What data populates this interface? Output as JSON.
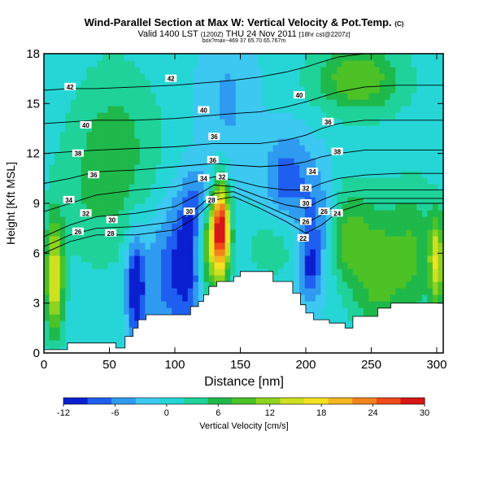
{
  "header": {
    "title": "Wind-Parallel Section at Max W: Vertical Velocity & Pot.Temp.",
    "title_mark": "(C)",
    "valid_line": "Valid 1400 LST",
    "valid_run": "(1200Z)",
    "valid_date": "THU 24 Nov 2011",
    "valid_tag": "[18hr cst@2207z]",
    "subline": "box?max~469 37 65.70 65.767m"
  },
  "colors": {
    "terrain": "#ffffff",
    "contour": "#000000",
    "label_bg": "#ffffff"
  },
  "chart_data": {
    "type": "heatmap",
    "xlabel": "Distance [nm]",
    "ylabel": "Height [Kft MSL]",
    "xlim": [
      0,
      305
    ],
    "ylim": [
      0,
      18
    ],
    "xticks": [
      0,
      50,
      100,
      150,
      200,
      250,
      300
    ],
    "yticks": [
      0,
      3,
      6,
      9,
      12,
      15,
      18
    ],
    "colorbar": {
      "label": "Vertical Velocity [cm/s]",
      "ticks": [
        -12,
        -6,
        0,
        6,
        12,
        18,
        24,
        30
      ],
      "range": [
        -12,
        30
      ],
      "colors": [
        "#0a1fd0",
        "#1f5ff0",
        "#2f9bf0",
        "#3cc8f0",
        "#26d6d6",
        "#1fd29a",
        "#1fb84a",
        "#4cc227",
        "#8fd21f",
        "#cfe021",
        "#f5e021",
        "#f5b61f",
        "#f2841c",
        "#ef4a1a",
        "#d81616"
      ]
    },
    "terrain": {
      "x": [
        0,
        18,
        18,
        55,
        55,
        62,
        62,
        68,
        68,
        72,
        72,
        78,
        78,
        84,
        84,
        112,
        112,
        118,
        118,
        122,
        122,
        126,
        126,
        132,
        132,
        145,
        145,
        150,
        150,
        175,
        175,
        190,
        190,
        196,
        196,
        200,
        200,
        206,
        206,
        218,
        218,
        230,
        230,
        236,
        236,
        255,
        255,
        265,
        265,
        305
      ],
      "top_kft": [
        0.2,
        0.2,
        0.6,
        0.6,
        0.3,
        0.3,
        1.0,
        1.0,
        1.5,
        1.5,
        2.0,
        2.0,
        2.3,
        2.3,
        2.3,
        2.3,
        2.8,
        2.8,
        3.1,
        3.1,
        3.5,
        3.5,
        4.0,
        4.0,
        4.3,
        4.3,
        4.6,
        4.6,
        4.9,
        4.9,
        4.3,
        4.3,
        3.6,
        3.6,
        2.9,
        2.9,
        2.4,
        2.4,
        2.0,
        2.0,
        1.8,
        1.8,
        1.5,
        1.5,
        2.2,
        2.2,
        2.7,
        2.7,
        3.0,
        3.0
      ]
    },
    "w_features": [
      {
        "x": 8,
        "z": 4.5,
        "sx": 5,
        "sz": 2.5,
        "w": 16
      },
      {
        "x": 70,
        "z": 4.0,
        "sx": 5,
        "sz": 2.2,
        "w": -13
      },
      {
        "x": 96,
        "z": 5.0,
        "sx": 14,
        "sz": 2.8,
        "w": -8
      },
      {
        "x": 112,
        "z": 5.5,
        "sx": 9,
        "sz": 3.0,
        "w": -7
      },
      {
        "x": 125,
        "z": 6.5,
        "sx": 6,
        "sz": 2.2,
        "w": 12
      },
      {
        "x": 135,
        "z": 7.5,
        "sx": 5,
        "sz": 2.0,
        "w": 30
      },
      {
        "x": 185,
        "z": 10.5,
        "sx": 12,
        "sz": 2.0,
        "w": -8
      },
      {
        "x": 208,
        "z": 8.0,
        "sx": 9,
        "sz": 2.5,
        "w": -6
      },
      {
        "x": 203,
        "z": 5.0,
        "sx": 6,
        "sz": 1.5,
        "w": -8
      },
      {
        "x": 232,
        "z": 7.0,
        "sx": 10,
        "sz": 2.0,
        "w": 8
      },
      {
        "x": 255,
        "z": 5.0,
        "sx": 14,
        "sz": 3.0,
        "w": 9
      },
      {
        "x": 283,
        "z": 6.0,
        "sx": 12,
        "sz": 3.0,
        "w": 7
      },
      {
        "x": 300,
        "z": 5.5,
        "sx": 4,
        "sz": 2.0,
        "w": 14
      },
      {
        "x": 55,
        "z": 12.0,
        "sx": 25,
        "sz": 4.0,
        "w": 6
      },
      {
        "x": 240,
        "z": 16.5,
        "sx": 25,
        "sz": 1.5,
        "w": 10
      },
      {
        "x": 140,
        "z": 15.0,
        "sx": 15,
        "sz": 4.0,
        "w": -4
      },
      {
        "x": 175,
        "z": 6.5,
        "sx": 15,
        "sz": 1.5,
        "w": 4
      },
      {
        "x": 30,
        "z": 9.0,
        "sx": 20,
        "sz": 3.0,
        "w": 2
      },
      {
        "x": 120,
        "z": 9.0,
        "sx": 10,
        "sz": 1.5,
        "w": -6
      }
    ],
    "theta_contours": [
      {
        "label": "28",
        "pts": [
          [
            0,
            6.0
          ],
          [
            20,
            6.7
          ],
          [
            40,
            7.1
          ],
          [
            70,
            7.1
          ],
          [
            100,
            7.4
          ],
          [
            115,
            8.1
          ],
          [
            130,
            9.2
          ],
          [
            145,
            9.4
          ],
          [
            165,
            8.7
          ],
          [
            185,
            7.9
          ],
          [
            200,
            7.2
          ],
          [
            212,
            7.7
          ],
          [
            225,
            8.5
          ],
          [
            245,
            9.0
          ],
          [
            270,
            9.0
          ],
          [
            305,
            9.0
          ]
        ]
      },
      {
        "label": "30",
        "pts": [
          [
            0,
            6.4
          ],
          [
            20,
            7.1
          ],
          [
            40,
            7.5
          ],
          [
            70,
            7.6
          ],
          [
            100,
            7.9
          ],
          [
            115,
            8.6
          ],
          [
            130,
            9.6
          ],
          [
            145,
            9.7
          ],
          [
            165,
            9.0
          ],
          [
            185,
            8.3
          ],
          [
            200,
            7.8
          ],
          [
            212,
            8.3
          ],
          [
            225,
            9.0
          ],
          [
            245,
            9.3
          ],
          [
            270,
            9.3
          ],
          [
            305,
            9.3
          ]
        ]
      },
      {
        "label": "32",
        "pts": [
          [
            0,
            7.0
          ],
          [
            20,
            7.7
          ],
          [
            40,
            8.2
          ],
          [
            70,
            8.4
          ],
          [
            100,
            8.8
          ],
          [
            115,
            9.4
          ],
          [
            130,
            10.1
          ],
          [
            145,
            10.0
          ],
          [
            165,
            9.4
          ],
          [
            185,
            8.9
          ],
          [
            200,
            8.7
          ],
          [
            212,
            9.2
          ],
          [
            225,
            9.6
          ],
          [
            245,
            9.8
          ],
          [
            270,
            9.8
          ],
          [
            305,
            9.8
          ]
        ]
      },
      {
        "label": "34",
        "pts": [
          [
            0,
            8.5
          ],
          [
            20,
            9.0
          ],
          [
            40,
            9.5
          ],
          [
            70,
            9.8
          ],
          [
            100,
            10.0
          ],
          [
            115,
            10.3
          ],
          [
            130,
            10.6
          ],
          [
            145,
            10.4
          ],
          [
            165,
            10.0
          ],
          [
            185,
            9.8
          ],
          [
            200,
            9.8
          ],
          [
            212,
            10.2
          ],
          [
            225,
            10.5
          ],
          [
            245,
            10.7
          ],
          [
            270,
            10.8
          ],
          [
            305,
            10.8
          ]
        ]
      },
      {
        "label": "36",
        "pts": [
          [
            0,
            10.2
          ],
          [
            20,
            10.5
          ],
          [
            40,
            10.9
          ],
          [
            70,
            11.0
          ],
          [
            100,
            11.2
          ],
          [
            115,
            11.3
          ],
          [
            130,
            11.4
          ],
          [
            145,
            11.3
          ],
          [
            165,
            11.2
          ],
          [
            185,
            11.3
          ],
          [
            200,
            11.5
          ],
          [
            212,
            11.8
          ],
          [
            225,
            12.0
          ],
          [
            245,
            12.2
          ],
          [
            270,
            12.2
          ],
          [
            305,
            12.2
          ]
        ]
      },
      {
        "label": "38",
        "pts": [
          [
            0,
            12.0
          ],
          [
            20,
            12.1
          ],
          [
            40,
            12.2
          ],
          [
            70,
            12.3
          ],
          [
            100,
            12.4
          ],
          [
            115,
            12.5
          ],
          [
            130,
            12.6
          ],
          [
            145,
            12.6
          ],
          [
            165,
            12.6
          ],
          [
            185,
            12.8
          ],
          [
            200,
            13.1
          ],
          [
            212,
            13.5
          ],
          [
            225,
            13.8
          ],
          [
            245,
            14.0
          ],
          [
            270,
            14.0
          ],
          [
            305,
            14.0
          ]
        ]
      },
      {
        "label": "40",
        "pts": [
          [
            0,
            13.8
          ],
          [
            20,
            13.9
          ],
          [
            40,
            14.0
          ],
          [
            70,
            14.0
          ],
          [
            100,
            14.1
          ],
          [
            115,
            14.2
          ],
          [
            130,
            14.3
          ],
          [
            145,
            14.4
          ],
          [
            165,
            14.5
          ],
          [
            185,
            14.8
          ],
          [
            200,
            15.1
          ],
          [
            212,
            15.4
          ],
          [
            225,
            15.7
          ],
          [
            245,
            16.0
          ],
          [
            270,
            16.1
          ],
          [
            305,
            16.1
          ]
        ]
      },
      {
        "label": "42",
        "pts": [
          [
            0,
            15.8
          ],
          [
            20,
            15.9
          ],
          [
            40,
            15.9
          ],
          [
            70,
            16.0
          ],
          [
            100,
            16.1
          ],
          [
            115,
            16.2
          ],
          [
            130,
            16.3
          ],
          [
            145,
            16.4
          ],
          [
            165,
            16.6
          ],
          [
            185,
            16.9
          ],
          [
            200,
            17.2
          ],
          [
            212,
            17.5
          ],
          [
            225,
            17.8
          ],
          [
            245,
            18.0
          ],
          [
            270,
            18.0
          ],
          [
            305,
            18.0
          ]
        ]
      }
    ],
    "theta_labels": [
      {
        "text": "42",
        "x": 20,
        "z": 16.0
      },
      {
        "text": "42",
        "x": 97,
        "z": 16.5
      },
      {
        "text": "40",
        "x": 195,
        "z": 15.5
      },
      {
        "text": "40",
        "x": 32,
        "z": 13.7
      },
      {
        "text": "40",
        "x": 122,
        "z": 14.6
      },
      {
        "text": "36",
        "x": 217,
        "z": 13.9
      },
      {
        "text": "36",
        "x": 130,
        "z": 13.0
      },
      {
        "text": "38",
        "x": 26,
        "z": 12.0
      },
      {
        "text": "36",
        "x": 129,
        "z": 11.6
      },
      {
        "text": "38",
        "x": 224,
        "z": 12.1
      },
      {
        "text": "36",
        "x": 38,
        "z": 10.7
      },
      {
        "text": "34",
        "x": 205,
        "z": 10.9
      },
      {
        "text": "34",
        "x": 122,
        "z": 10.5
      },
      {
        "text": "32",
        "x": 136,
        "z": 10.6
      },
      {
        "text": "32",
        "x": 200,
        "z": 9.9
      },
      {
        "text": "34",
        "x": 19,
        "z": 9.2
      },
      {
        "text": "28",
        "x": 128,
        "z": 9.2
      },
      {
        "text": "30",
        "x": 200,
        "z": 9.0
      },
      {
        "text": "30",
        "x": 111,
        "z": 8.5
      },
      {
        "text": "32",
        "x": 32,
        "z": 8.4
      },
      {
        "text": "26",
        "x": 214,
        "z": 8.5
      },
      {
        "text": "24",
        "x": 224,
        "z": 8.4
      },
      {
        "text": "30",
        "x": 52,
        "z": 8.0
      },
      {
        "text": "26",
        "x": 200,
        "z": 7.9
      },
      {
        "text": "26",
        "x": 26,
        "z": 7.3
      },
      {
        "text": "28",
        "x": 51,
        "z": 7.2
      },
      {
        "text": "22",
        "x": 198,
        "z": 6.9
      }
    ],
    "grid": false,
    "legend_position": "bottom"
  }
}
